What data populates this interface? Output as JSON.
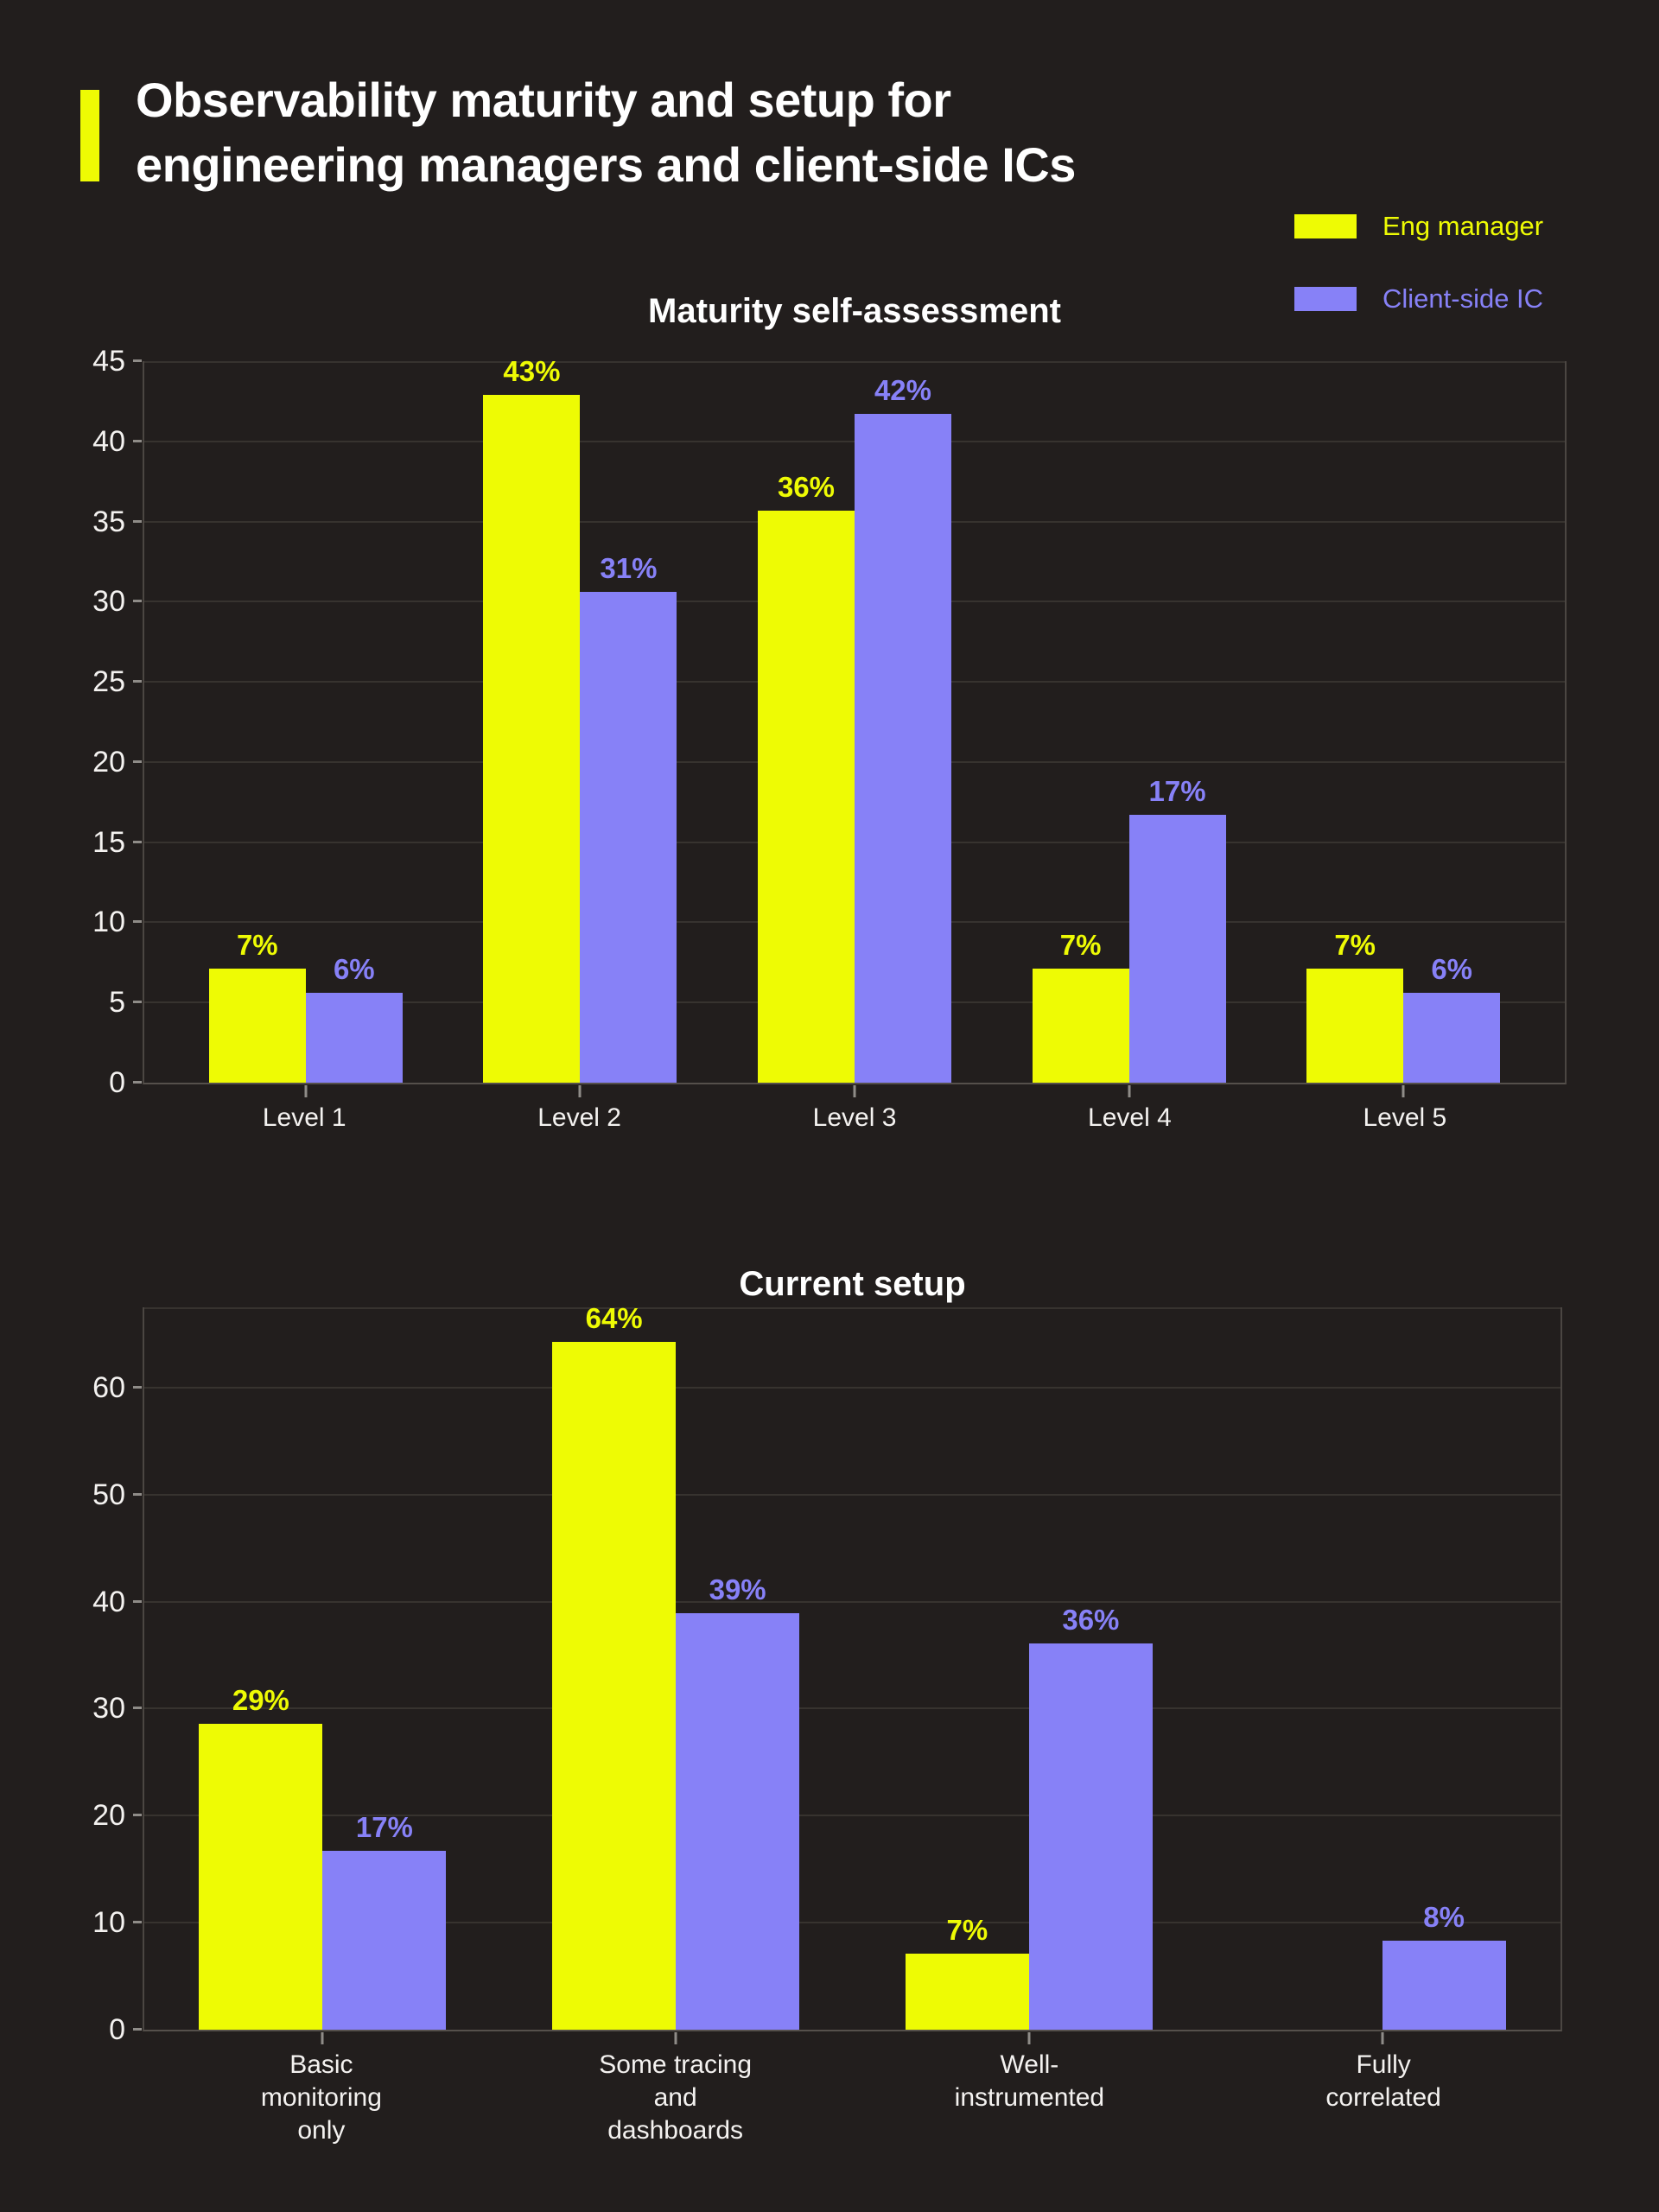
{
  "page": {
    "background": "#221e1d"
  },
  "colors": {
    "eng_manager": "#eefb04",
    "client_side_ic": "#8781f7",
    "text": "#ffffff",
    "gridline": "#37332f",
    "spine": "#4b4642"
  },
  "header": {
    "title_line1": "Observability maturity and setup for",
    "title_line2": "engineering managers and client-side ICs"
  },
  "legend": {
    "items": [
      {
        "label": "Eng manager",
        "color": "#eefb04"
      },
      {
        "label": "Client-side IC",
        "color": "#8781f7"
      }
    ]
  },
  "chart_data": [
    {
      "type": "bar",
      "title": "Maturity self-assessment",
      "categories": [
        "Level 1",
        "Level 2",
        "Level 3",
        "Level 4",
        "Level 5"
      ],
      "series": [
        {
          "name": "Eng manager",
          "color": "#eefb04",
          "values": [
            7.1,
            42.9,
            35.7,
            7.1,
            7.1
          ],
          "labels": [
            "7%",
            "43%",
            "36%",
            "7%",
            "7%"
          ]
        },
        {
          "name": "Client-side IC",
          "color": "#8781f7",
          "values": [
            5.6,
            30.6,
            41.7,
            16.7,
            5.6
          ],
          "labels": [
            "6%",
            "31%",
            "42%",
            "17%",
            "6%"
          ]
        }
      ],
      "xlabel": "",
      "ylabel": "",
      "ylim": [
        0,
        45
      ],
      "y_ticks": [
        0,
        5,
        10,
        15,
        20,
        25,
        30,
        35,
        40,
        45
      ],
      "grid": true,
      "value_labels": "percent above each bar",
      "legend_position": "top-right of page, shared by both charts"
    },
    {
      "type": "bar",
      "title": "Current setup",
      "categories": [
        "Basic\nmonitoring\nonly",
        "Some tracing\nand\ndashboards",
        "Well-\ninstrumented",
        "Fully\ncorrelated"
      ],
      "series": [
        {
          "name": "Eng manager",
          "color": "#eefb04",
          "values": [
            28.6,
            64.3,
            7.1,
            0
          ],
          "labels": [
            "29%",
            "64%",
            "7%",
            ""
          ]
        },
        {
          "name": "Client-side IC",
          "color": "#8781f7",
          "values": [
            16.7,
            38.9,
            36.1,
            8.3
          ],
          "labels": [
            "17%",
            "39%",
            "36%",
            "8%"
          ]
        }
      ],
      "xlabel": "",
      "ylabel": "",
      "ylim": [
        0,
        67.5
      ],
      "y_ticks": [
        0,
        10,
        20,
        30,
        40,
        50,
        60
      ],
      "grid": true,
      "value_labels": "percent above each bar",
      "legend_position": "top-right of page, shared by both charts"
    }
  ]
}
